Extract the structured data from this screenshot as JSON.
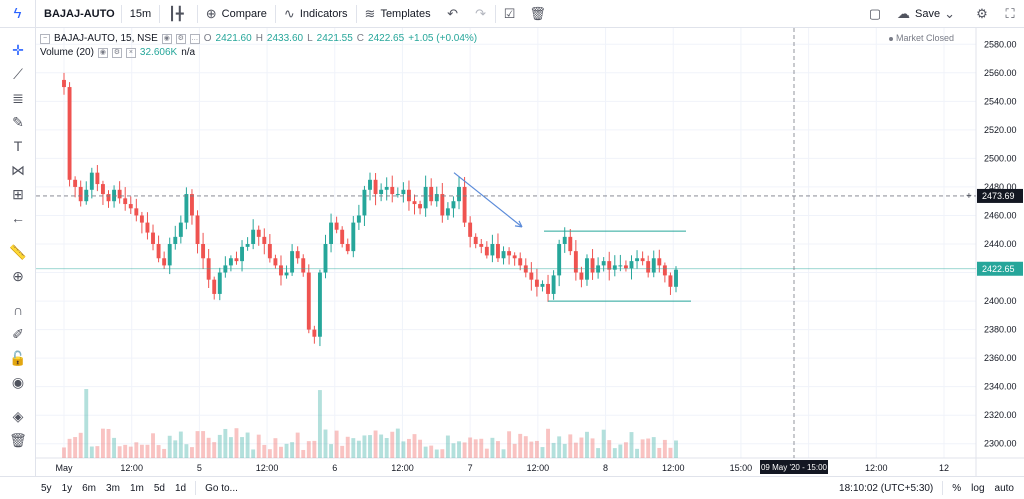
{
  "toolbar": {
    "symbol": "BAJAJ-AUTO",
    "interval": "15m",
    "compare_label": "Compare",
    "indicators_label": "Indicators",
    "templates_label": "Templates",
    "save_label": "Save"
  },
  "legend": {
    "title": "BAJAJ-AUTO, 15, NSE",
    "open_label": "O",
    "open": "2421.60",
    "high_label": "H",
    "high": "2433.60",
    "low_label": "L",
    "low": "2421.55",
    "close_label": "C",
    "close": "2422.65",
    "change": "+1.05 (+0.04%)",
    "volume_title": "Volume (20)",
    "volume_value": "32.606K",
    "volume_ma": "n/a"
  },
  "status": {
    "market": "Market Closed"
  },
  "crosshair": {
    "price": "2473.69",
    "time": "09 May '20 - 15:00"
  },
  "last_price": "2422.65",
  "colors": {
    "up": "#26a69a",
    "down": "#ef5350",
    "accent": "#2962ff"
  },
  "chart_data": {
    "type": "candlestick",
    "y_ticks": [
      "2580.00",
      "2560.00",
      "2540.00",
      "2520.00",
      "2500.00",
      "2480.00",
      "2460.00",
      "2440.00",
      "2420.00",
      "2400.00",
      "2380.00",
      "2360.00",
      "2340.00",
      "2320.00",
      "2300.00"
    ],
    "x_ticks": [
      "May",
      "12:00",
      "5",
      "12:00",
      "6",
      "12:00",
      "7",
      "12:00",
      "8",
      "12:00",
      "15:00",
      "12:00",
      "12:00",
      "12"
    ],
    "ylim": [
      2290,
      2590
    ],
    "approx_close_series": [
      2550,
      2485,
      2480,
      2470,
      2478,
      2490,
      2482,
      2475,
      2470,
      2478,
      2472,
      2468,
      2465,
      2460,
      2455,
      2448,
      2440,
      2430,
      2425,
      2440,
      2445,
      2455,
      2475,
      2460,
      2440,
      2430,
      2415,
      2405,
      2420,
      2425,
      2430,
      2428,
      2438,
      2440,
      2450,
      2445,
      2440,
      2430,
      2425,
      2418,
      2420,
      2435,
      2430,
      2420,
      2380,
      2375,
      2420,
      2440,
      2455,
      2450,
      2440,
      2435,
      2455,
      2460,
      2478,
      2485,
      2475,
      2478,
      2480,
      2475,
      2475,
      2478,
      2470,
      2468,
      2465,
      2480,
      2470,
      2475,
      2460,
      2465,
      2470,
      2480,
      2455,
      2445,
      2440,
      2438,
      2432,
      2440,
      2430,
      2435,
      2432,
      2430,
      2425,
      2420,
      2415,
      2410,
      2412,
      2405,
      2418,
      2440,
      2445,
      2435,
      2420,
      2415,
      2430,
      2420,
      2425,
      2428,
      2422,
      2425,
      2425,
      2423,
      2428,
      2430,
      2428,
      2420,
      2430,
      2425,
      2418,
      2410,
      2422
    ]
  },
  "bottombar": {
    "ranges": [
      "5y",
      "1y",
      "6m",
      "3m",
      "1m",
      "5d",
      "1d"
    ],
    "goto_label": "Go to...",
    "clock": "18:10:02 (UTC+5:30)",
    "percent_label": "%",
    "log_label": "log",
    "auto_label": "auto"
  }
}
